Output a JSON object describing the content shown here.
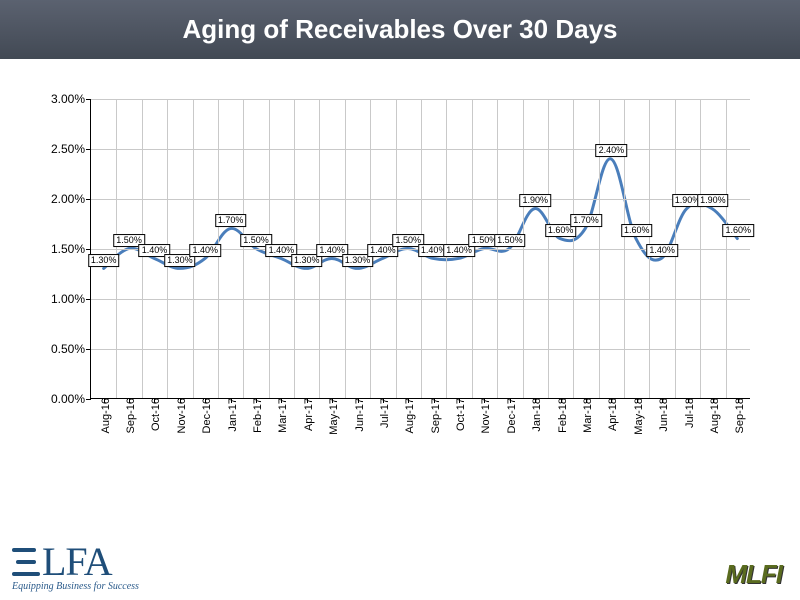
{
  "title": "Aging of Receivables Over 30 Days",
  "chart": {
    "type": "line",
    "background_color": "#ffffff",
    "grid_color": "#c9c9c9",
    "axis_color": "#000000",
    "line_color": "#4a7ebb",
    "line_width": 3,
    "smooth": true,
    "ylim": [
      0,
      3
    ],
    "ytick_step": 0.5,
    "ytick_format": "0.00%",
    "label_fontsize": 9,
    "label_border_color": "#000000",
    "label_bg": "#ffffff",
    "tick_fontsize": 12,
    "xtick_fontsize": 11,
    "xtick_rotation": -90,
    "yticks": [
      {
        "v": 0.0,
        "label": "0.00%"
      },
      {
        "v": 0.5,
        "label": "0.50%"
      },
      {
        "v": 1.0,
        "label": "1.00%"
      },
      {
        "v": 1.5,
        "label": "1.50%"
      },
      {
        "v": 2.0,
        "label": "2.00%"
      },
      {
        "v": 2.5,
        "label": "2.50%"
      },
      {
        "v": 3.0,
        "label": "3.00%"
      }
    ],
    "points": [
      {
        "x": "Aug-16",
        "v": 1.3,
        "label": "1.30%"
      },
      {
        "x": "Sep-16",
        "v": 1.5,
        "label": "1.50%"
      },
      {
        "x": "Oct-16",
        "v": 1.4,
        "label": "1.40%"
      },
      {
        "x": "Nov-16",
        "v": 1.3,
        "label": "1.30%"
      },
      {
        "x": "Dec-16",
        "v": 1.4,
        "label": "1.40%"
      },
      {
        "x": "Jan-17",
        "v": 1.7,
        "label": "1.70%"
      },
      {
        "x": "Feb-17",
        "v": 1.5,
        "label": "1.50%"
      },
      {
        "x": "Mar-17",
        "v": 1.4,
        "label": "1.40%"
      },
      {
        "x": "Apr-17",
        "v": 1.3,
        "label": "1.30%"
      },
      {
        "x": "May-17",
        "v": 1.4,
        "label": "1.40%"
      },
      {
        "x": "Jun-17",
        "v": 1.3,
        "label": "1.30%"
      },
      {
        "x": "Jul-17",
        "v": 1.4,
        "label": "1.40%"
      },
      {
        "x": "Aug-17",
        "v": 1.5,
        "label": "1.50%"
      },
      {
        "x": "Sep-17",
        "v": 1.4,
        "label": "1.40%"
      },
      {
        "x": "Oct-17",
        "v": 1.4,
        "label": "1.40%"
      },
      {
        "x": "Nov-17",
        "v": 1.5,
        "label": "1.50%"
      },
      {
        "x": "Dec-17",
        "v": 1.5,
        "label": "1.50%"
      },
      {
        "x": "Jan-18",
        "v": 1.9,
        "label": "1.90%"
      },
      {
        "x": "Feb-18",
        "v": 1.6,
        "label": "1.60%"
      },
      {
        "x": "Mar-18",
        "v": 1.7,
        "label": "1.70%"
      },
      {
        "x": "Apr-18",
        "v": 2.4,
        "label": "2.40%"
      },
      {
        "x": "May-18",
        "v": 1.6,
        "label": "1.60%"
      },
      {
        "x": "Jun-18",
        "v": 1.4,
        "label": "1.40%"
      },
      {
        "x": "Jul-18",
        "v": 1.9,
        "label": "1.90%"
      },
      {
        "x": "Aug-18",
        "v": 1.9,
        "label": "1.90%"
      },
      {
        "x": "Sep-18",
        "v": 1.6,
        "label": "1.60%"
      }
    ]
  },
  "logos": {
    "elfa_letters": "LFA",
    "elfa_tagline": "Equipping Business for Success",
    "mlfi": "MLFI"
  },
  "colors": {
    "title_bg_top": "#5b6270",
    "title_bg_bottom": "#424954",
    "title_text": "#ffffff",
    "elfa": "#1f4e79",
    "mlfi": "#5a6b1f"
  }
}
